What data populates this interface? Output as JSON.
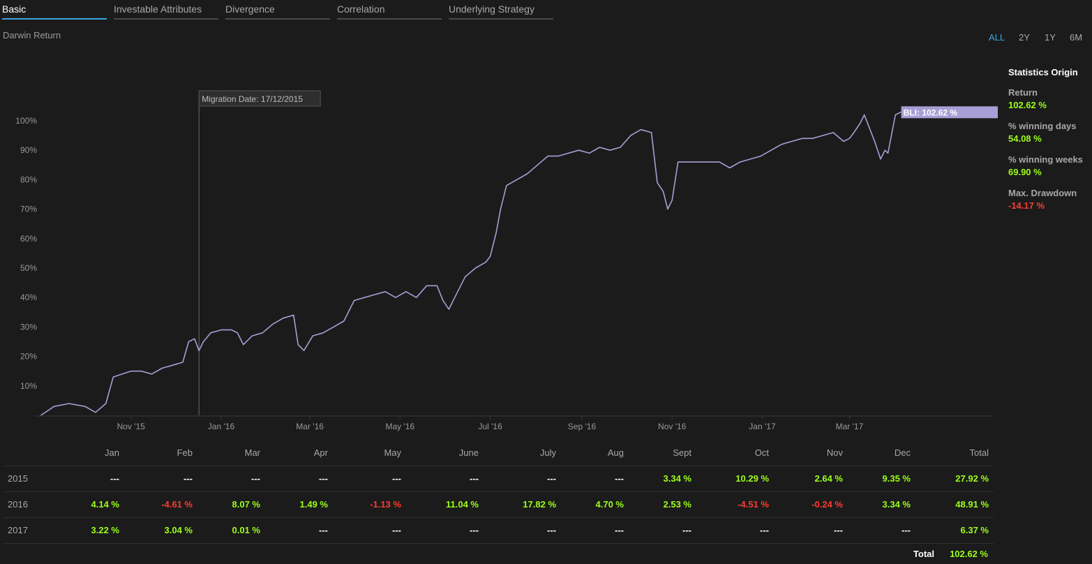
{
  "tabs": [
    {
      "label": "Basic",
      "active": true
    },
    {
      "label": "Investable Attributes",
      "active": false
    },
    {
      "label": "Divergence",
      "active": false
    },
    {
      "label": "Correlation",
      "active": false
    },
    {
      "label": "Underlying Strategy",
      "active": false
    }
  ],
  "section_title": "Darwin Return",
  "ranges": [
    {
      "label": "ALL",
      "active": true
    },
    {
      "label": "2Y",
      "active": false
    },
    {
      "label": "1Y",
      "active": false
    },
    {
      "label": "6M",
      "active": false
    }
  ],
  "stats": {
    "title": "Statistics Origin",
    "items": [
      {
        "label": "Return",
        "value": "102.62 %",
        "tone": "pos"
      },
      {
        "label": "% winning days",
        "value": "54.08 %",
        "tone": "pos"
      },
      {
        "label": "% winning weeks",
        "value": "69.90 %",
        "tone": "pos"
      },
      {
        "label": "Max. Drawdown",
        "value": "-14.17 %",
        "tone": "neg"
      }
    ]
  },
  "colors": {
    "background": "#1b1b1b",
    "line": "#a79fd6",
    "accent": "#3aa6e0",
    "positive": "#9cff1a",
    "negative": "#ff3b30"
  },
  "chart_data": {
    "type": "line",
    "title": "Darwin Return",
    "x_tick_labels": [
      "Nov '15",
      "Jan '16",
      "Mar '16",
      "May '16",
      "Jul '16",
      "Sep '16",
      "Nov '16",
      "Jan '17",
      "Mar '17"
    ],
    "y_tick_labels": [
      "10%",
      "20%",
      "30%",
      "40%",
      "50%",
      "60%",
      "70%",
      "80%",
      "90%",
      "100%"
    ],
    "ylim": [
      0,
      100
    ],
    "grid": false,
    "annotation": "Migration Date: 17/12/2015",
    "end_label": "BLI: 102.62 %",
    "series": [
      {
        "x": [
          "2015-09-01",
          "2015-09-10",
          "2015-09-20",
          "2015-10-01",
          "2015-10-08",
          "2015-10-15",
          "2015-10-20",
          "2015-10-26",
          "2015-11-01",
          "2015-11-08",
          "2015-11-15",
          "2015-11-22",
          "2015-11-29",
          "2015-12-06",
          "2015-12-10",
          "2015-12-14",
          "2015-12-17",
          "2015-12-20",
          "2015-12-25",
          "2016-01-01",
          "2016-01-08",
          "2016-01-12",
          "2016-01-16",
          "2016-01-22",
          "2016-01-29",
          "2016-02-05",
          "2016-02-12",
          "2016-02-19",
          "2016-02-22",
          "2016-02-26",
          "2016-03-03",
          "2016-03-10",
          "2016-03-17",
          "2016-03-24",
          "2016-03-31",
          "2016-04-07",
          "2016-04-14",
          "2016-04-21",
          "2016-04-28",
          "2016-05-05",
          "2016-05-12",
          "2016-05-19",
          "2016-05-26",
          "2016-05-30",
          "2016-06-03",
          "2016-06-07",
          "2016-06-14",
          "2016-06-21",
          "2016-06-28",
          "2016-07-01",
          "2016-07-05",
          "2016-07-08",
          "2016-07-12",
          "2016-07-19",
          "2016-07-26",
          "2016-08-02",
          "2016-08-09",
          "2016-08-16",
          "2016-08-23",
          "2016-08-30",
          "2016-09-06",
          "2016-09-13",
          "2016-09-20",
          "2016-09-27",
          "2016-10-04",
          "2016-10-11",
          "2016-10-18",
          "2016-10-22",
          "2016-10-26",
          "2016-10-29",
          "2016-11-01",
          "2016-11-05",
          "2016-11-12",
          "2016-11-19",
          "2016-11-26",
          "2016-12-03",
          "2016-12-10",
          "2016-12-17",
          "2016-12-24",
          "2016-12-31",
          "2017-01-07",
          "2017-01-14",
          "2017-01-21",
          "2017-01-28",
          "2017-02-04",
          "2017-02-11",
          "2017-02-18",
          "2017-02-25",
          "2017-03-01",
          "2017-03-04",
          "2017-03-08",
          "2017-03-11",
          "2017-03-18",
          "2017-03-22",
          "2017-03-25",
          "2017-03-27",
          "2017-04-01",
          "2017-04-05"
        ],
        "y": [
          0,
          3,
          4,
          3,
          1,
          4,
          13,
          14,
          15,
          15,
          14,
          16,
          17,
          18,
          25,
          26,
          22,
          25,
          28,
          29,
          29,
          28,
          24,
          27,
          28,
          31,
          33,
          34,
          24,
          22,
          27,
          28,
          30,
          32,
          39,
          40,
          41,
          42,
          40,
          42,
          40,
          44,
          44,
          39,
          36,
          40,
          47,
          50,
          52,
          54,
          62,
          70,
          78,
          80,
          82,
          85,
          88,
          88,
          89,
          90,
          89,
          91,
          90,
          91,
          95,
          97,
          96,
          79,
          76,
          70,
          73,
          86,
          86,
          86,
          86,
          86,
          84,
          86,
          87,
          88,
          90,
          92,
          93,
          94,
          94,
          95,
          96,
          93,
          94,
          96,
          99,
          102,
          93,
          87,
          90,
          89,
          102,
          103
        ]
      }
    ]
  },
  "table": {
    "columns": [
      "Jan",
      "Feb",
      "Mar",
      "Apr",
      "May",
      "June",
      "July",
      "Aug",
      "Sept",
      "Oct",
      "Nov",
      "Dec",
      "Total"
    ],
    "rows": [
      {
        "year": "2015",
        "cells": [
          {
            "v": "---",
            "t": "dash"
          },
          {
            "v": "---",
            "t": "dash"
          },
          {
            "v": "---",
            "t": "dash"
          },
          {
            "v": "---",
            "t": "dash"
          },
          {
            "v": "---",
            "t": "dash"
          },
          {
            "v": "---",
            "t": "dash"
          },
          {
            "v": "---",
            "t": "dash"
          },
          {
            "v": "---",
            "t": "dash"
          },
          {
            "v": "3.34 %",
            "t": "pos"
          },
          {
            "v": "10.29 %",
            "t": "pos"
          },
          {
            "v": "2.64 %",
            "t": "pos"
          },
          {
            "v": "9.35 %",
            "t": "pos"
          },
          {
            "v": "27.92 %",
            "t": "pos"
          }
        ]
      },
      {
        "year": "2016",
        "cells": [
          {
            "v": "4.14 %",
            "t": "pos"
          },
          {
            "v": "-4.61 %",
            "t": "neg"
          },
          {
            "v": "8.07 %",
            "t": "pos"
          },
          {
            "v": "1.49 %",
            "t": "pos"
          },
          {
            "v": "-1.13 %",
            "t": "neg"
          },
          {
            "v": "11.04 %",
            "t": "pos"
          },
          {
            "v": "17.82 %",
            "t": "pos"
          },
          {
            "v": "4.70 %",
            "t": "pos"
          },
          {
            "v": "2.53 %",
            "t": "pos"
          },
          {
            "v": "-4.51 %",
            "t": "neg"
          },
          {
            "v": "-0.24 %",
            "t": "neg"
          },
          {
            "v": "3.34 %",
            "t": "pos"
          },
          {
            "v": "48.91 %",
            "t": "pos"
          }
        ]
      },
      {
        "year": "2017",
        "cells": [
          {
            "v": "3.22 %",
            "t": "pos"
          },
          {
            "v": "3.04 %",
            "t": "pos"
          },
          {
            "v": "0.01 %",
            "t": "pos"
          },
          {
            "v": "---",
            "t": "dash"
          },
          {
            "v": "---",
            "t": "dash"
          },
          {
            "v": "---",
            "t": "dash"
          },
          {
            "v": "---",
            "t": "dash"
          },
          {
            "v": "---",
            "t": "dash"
          },
          {
            "v": "---",
            "t": "dash"
          },
          {
            "v": "---",
            "t": "dash"
          },
          {
            "v": "---",
            "t": "dash"
          },
          {
            "v": "---",
            "t": "dash"
          },
          {
            "v": "6.37 %",
            "t": "pos"
          }
        ]
      }
    ],
    "total_label": "Total",
    "total_value": "102.62 %"
  }
}
